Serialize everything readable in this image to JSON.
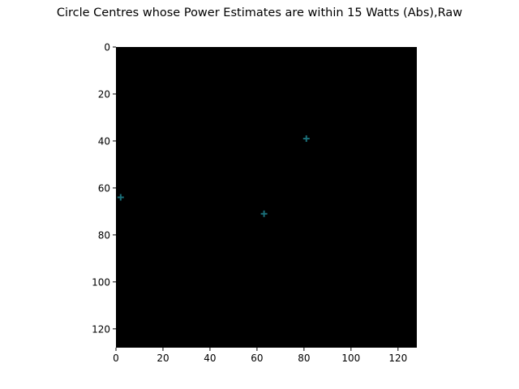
{
  "title": "Circle Centres whose Power Estimates are within 15 Watts (Abs),Raw",
  "chart_data": {
    "type": "scatter",
    "title": "Circle Centres whose Power Estimates are within 15 Watts (Abs),Raw",
    "xlabel": "",
    "ylabel": "",
    "xlim": [
      0,
      128
    ],
    "ylim": [
      128,
      0
    ],
    "y_inverted": true,
    "background": "#000000",
    "marker": "+",
    "marker_color": "#1a6e78",
    "grid": false,
    "xticks": [
      0,
      20,
      40,
      60,
      80,
      100,
      120
    ],
    "yticks": [
      0,
      20,
      40,
      60,
      80,
      100,
      120
    ],
    "series": [
      {
        "points": [
          {
            "x": 81,
            "y": 39
          },
          {
            "x": 2,
            "y": 64
          },
          {
            "x": 63,
            "y": 71
          }
        ]
      }
    ]
  }
}
